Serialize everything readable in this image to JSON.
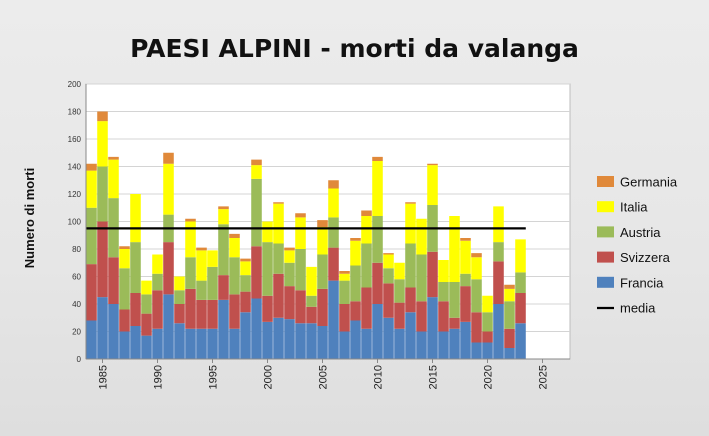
{
  "chart_data": {
    "type": "bar",
    "stacked": true,
    "title": "PAESI ALPINI - morti da valanga",
    "xlabel": "",
    "ylabel": "Numero di morti",
    "ylim": [
      0,
      200
    ],
    "yticks": [
      0,
      20,
      40,
      60,
      80,
      100,
      120,
      140,
      160,
      180,
      200
    ],
    "xlim": [
      1983.5,
      2027.5
    ],
    "xticks": [
      1985,
      1990,
      1995,
      2000,
      2005,
      2010,
      2015,
      2020,
      2025
    ],
    "grid": true,
    "legend_position": "right",
    "x": [
      1984,
      1985,
      1986,
      1987,
      1988,
      1989,
      1990,
      1991,
      1992,
      1993,
      1994,
      1995,
      1996,
      1997,
      1998,
      1999,
      2000,
      2001,
      2002,
      2003,
      2004,
      2005,
      2006,
      2007,
      2008,
      2009,
      2010,
      2011,
      2012,
      2013,
      2014,
      2015,
      2016,
      2017,
      2018,
      2019,
      2020,
      2021,
      2022,
      2023
    ],
    "series": [
      {
        "name": "Francia",
        "color": "#4f81bd",
        "values": [
          28,
          45,
          40,
          20,
          24,
          17,
          22,
          47,
          26,
          22,
          22,
          22,
          43,
          22,
          34,
          44,
          27,
          30,
          29,
          26,
          26,
          24,
          57,
          20,
          28,
          22,
          40,
          30,
          22,
          34,
          20,
          45,
          20,
          22,
          27,
          12,
          12,
          40,
          8,
          26
        ]
      },
      {
        "name": "Svizzera",
        "color": "#c0504d",
        "values": [
          41,
          55,
          34,
          16,
          24,
          16,
          28,
          38,
          14,
          29,
          21,
          21,
          18,
          25,
          15,
          38,
          19,
          32,
          24,
          24,
          12,
          27,
          24,
          20,
          14,
          30,
          30,
          25,
          19,
          18,
          22,
          33,
          22,
          8,
          26,
          22,
          8,
          31,
          14,
          22
        ]
      },
      {
        "name": "Austria",
        "color": "#9bbb59",
        "values": [
          41,
          40,
          43,
          30,
          37,
          14,
          12,
          20,
          10,
          23,
          14,
          24,
          37,
          27,
          12,
          49,
          39,
          22,
          17,
          30,
          8,
          25,
          22,
          17,
          26,
          32,
          34,
          11,
          17,
          32,
          34,
          34,
          14,
          26,
          9,
          24,
          14,
          14,
          20,
          15
        ]
      },
      {
        "name": "Italia",
        "color": "#ffff00",
        "values": [
          27,
          33,
          28,
          14,
          35,
          10,
          14,
          37,
          10,
          26,
          22,
          12,
          11,
          14,
          10,
          10,
          15,
          29,
          9,
          23,
          21,
          20,
          21,
          5,
          18,
          20,
          40,
          10,
          12,
          29,
          26,
          29,
          16,
          48,
          24,
          16,
          12,
          26,
          9,
          24
        ]
      },
      {
        "name": "Germania",
        "color": "#e0893a",
        "values": [
          5,
          7,
          2,
          2,
          0,
          0,
          0,
          8,
          0,
          2,
          2,
          0,
          2,
          3,
          2,
          4,
          0,
          1,
          2,
          3,
          0,
          5,
          6,
          2,
          2,
          4,
          3,
          1,
          0,
          1,
          0,
          1,
          0,
          0,
          2,
          3,
          0,
          0,
          3,
          0
        ]
      }
    ],
    "media": {
      "name": "media",
      "value": 95,
      "x_range": [
        1984,
        2023
      ],
      "color": "#000000"
    }
  }
}
